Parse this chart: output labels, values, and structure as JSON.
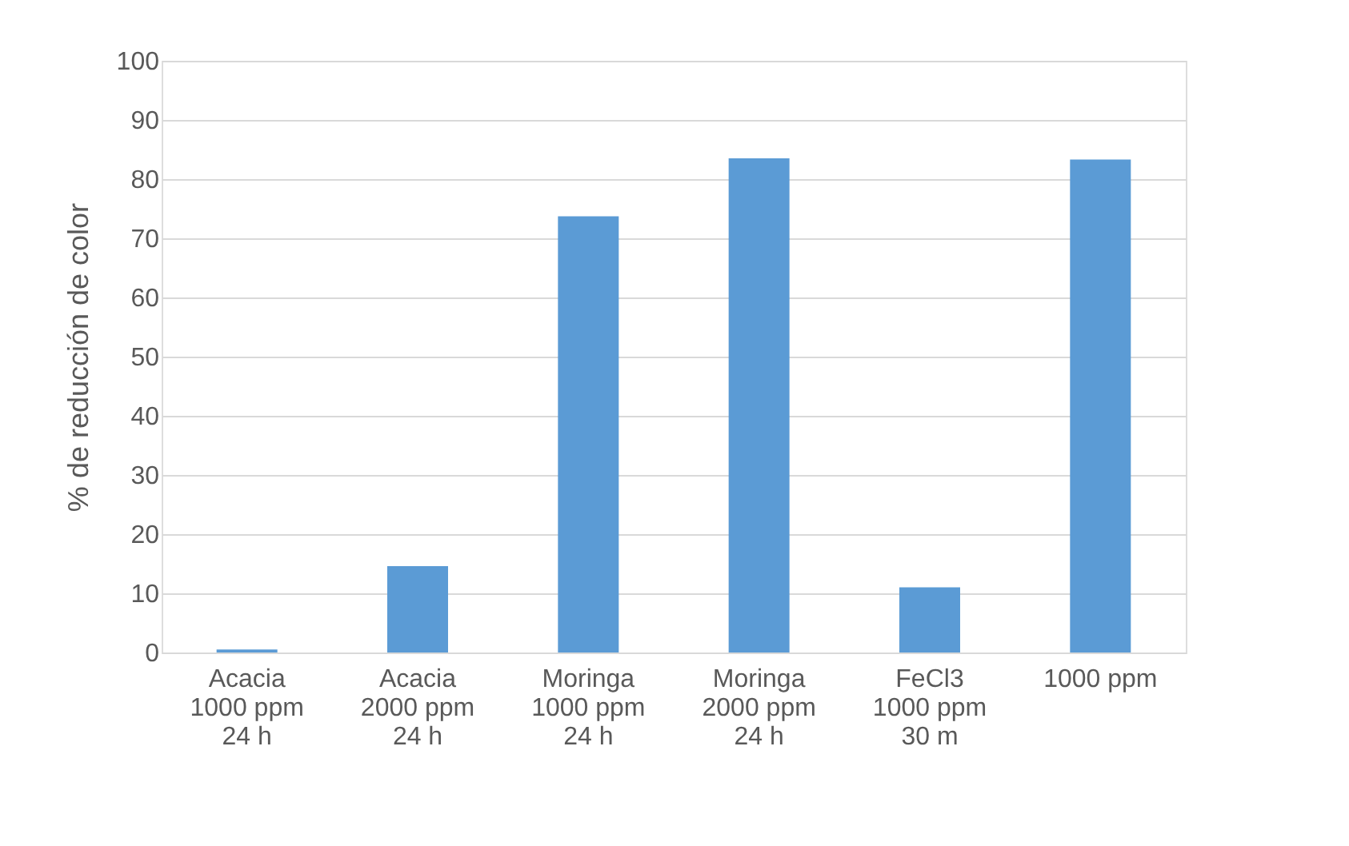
{
  "chart_data": {
    "type": "bar",
    "ylabel": "% de reducción de color",
    "categories": [
      "Acacia\n1000 ppm\n24 h",
      "Acacia\n2000 ppm\n24 h",
      "Moringa\n1000 ppm\n24 h",
      "Moringa\n2000 ppm\n24 h",
      "FeCl3\n1000 ppm\n30 m",
      "1000 ppm"
    ],
    "values": [
      0.5,
      14.6,
      73.7,
      83.5,
      11,
      83.3
    ],
    "color": "#5b9bd5",
    "ylim": [
      0,
      100
    ],
    "yticks": [
      0,
      10,
      20,
      30,
      40,
      50,
      60,
      70,
      80,
      90,
      100
    ],
    "grid": "y"
  }
}
